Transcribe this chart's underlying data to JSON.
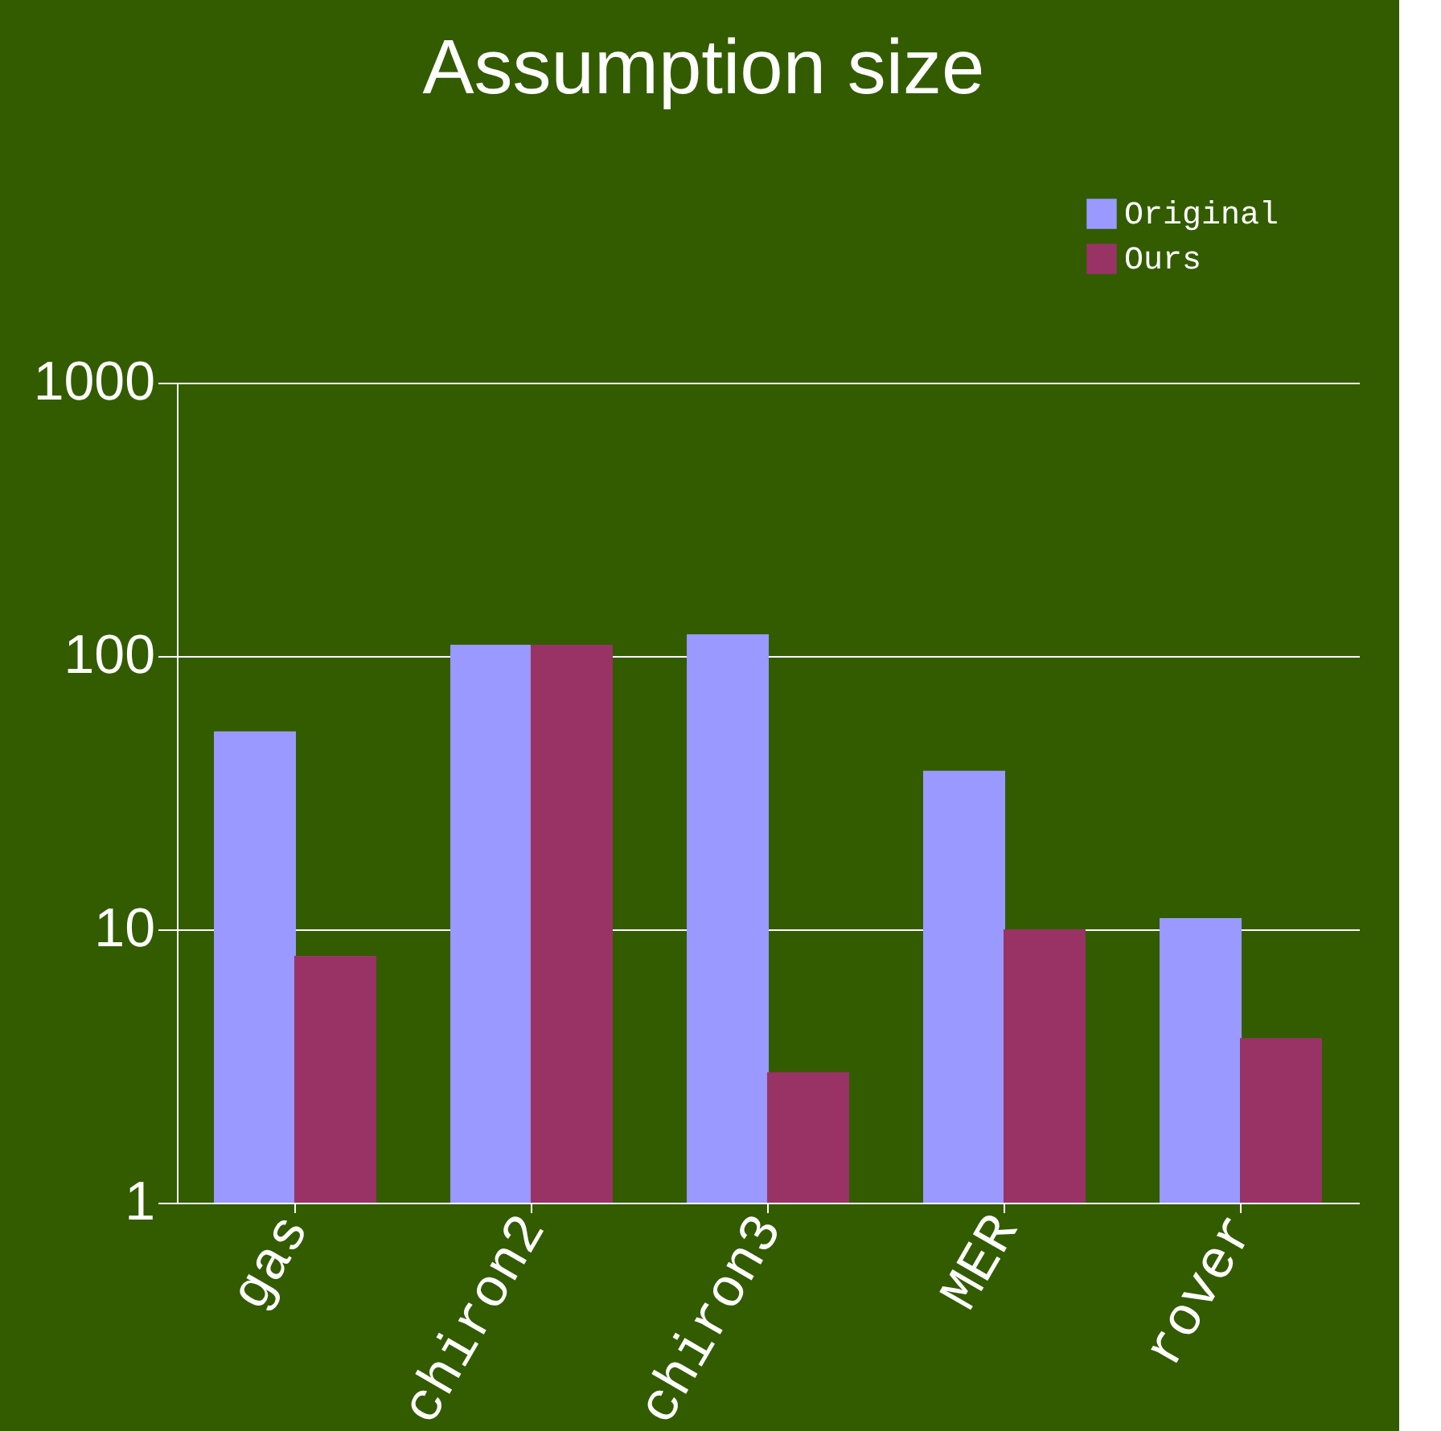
{
  "chart_data": {
    "type": "bar",
    "title": "Assumption size",
    "categories": [
      "gas",
      "chiron2",
      "chiron3",
      "MER",
      "rover"
    ],
    "series": [
      {
        "name": "Original",
        "color": "#9999ff",
        "values": [
          53,
          110,
          120,
          38,
          11
        ]
      },
      {
        "name": "Ours",
        "color": "#993366",
        "values": [
          8,
          110,
          3,
          10,
          4
        ]
      }
    ],
    "log": true,
    "ylim": [
      1,
      1000
    ],
    "yticks": [
      1,
      10,
      100,
      1000
    ],
    "grid": "y",
    "legend": "top right"
  }
}
